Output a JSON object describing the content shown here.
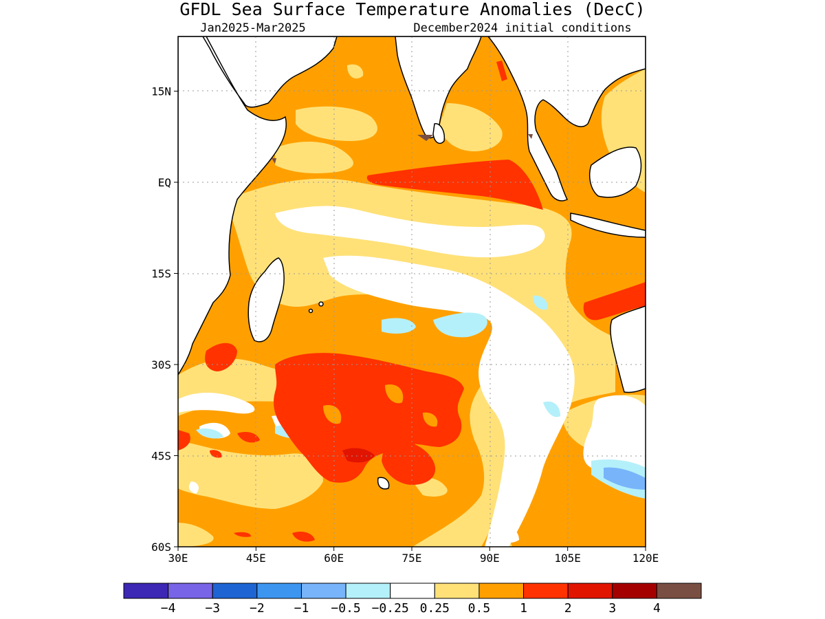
{
  "title": "GFDL Sea Surface Temperature Anomalies (DecC)",
  "subtitle_left": "Jan2025-Mar2025",
  "subtitle_right": "December2024 initial conditions",
  "chart_data": {
    "type": "heatmap",
    "title": "GFDL Sea Surface Temperature Anomalies (DecC)",
    "x_ticks": [
      "30E",
      "45E",
      "60E",
      "75E",
      "90E",
      "105E",
      "120E"
    ],
    "x_values": [
      30,
      45,
      60,
      75,
      90,
      105,
      120
    ],
    "y_ticks": [
      "15N",
      "EQ",
      "15S",
      "30S",
      "45S",
      "60S"
    ],
    "y_values": [
      15,
      0,
      -15,
      -30,
      -45,
      -60
    ],
    "xlim": [
      30,
      120
    ],
    "ylim": [
      -60,
      24
    ],
    "grid": true,
    "colorbar": {
      "labels": [
        "-4",
        "-3",
        "-2",
        "-1",
        "-0.5",
        "-0.25",
        "0.25",
        "0.5",
        "1",
        "2",
        "3",
        "4"
      ],
      "colors": [
        "#3c28b4",
        "#7864e6",
        "#1e64d2",
        "#3c96f0",
        "#78b4fa",
        "#b4f0fa",
        "#ffffff",
        "#ffe178",
        "#ffa000",
        "#ff3200",
        "#e11400",
        "#a50000",
        "#7a4f43"
      ]
    }
  }
}
